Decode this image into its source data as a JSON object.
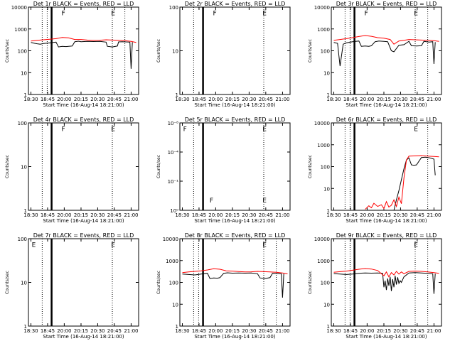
{
  "colors": {
    "events": "#000000",
    "lld": "#ff0000",
    "background": "#ffffff"
  },
  "xtick_labels": [
    "18:30",
    "18:45",
    "20:00",
    "20:15",
    "20:30",
    "20:45",
    "21:00"
  ],
  "chart_data": [
    {
      "type": "line",
      "title": "Det 1r BLACK = Events, RED = LLD",
      "xlabel": "Start Time (16-Aug-14 18:21:00)",
      "ylabel": "Counts/sec",
      "yscale": "log",
      "ylim": [
        1,
        10000
      ],
      "ytick_labels": [
        "10000",
        "1000",
        "100",
        "10",
        "1"
      ],
      "grid": false,
      "annotations": [
        "F",
        "E"
      ],
      "series": [
        {
          "color": "#000000",
          "x": [
            0,
            0.3,
            0.5,
            0.75,
            1,
            1.5,
            2,
            2.2,
            2.5,
            2.8,
            3.0,
            3.3,
            3.5,
            3.8,
            4.0,
            4.5,
            5,
            5.5,
            6.0,
            6.1,
            6.5,
            6.9,
            7.0,
            7.3,
            7.9,
            8.0,
            8.1
          ],
          "y": [
            240,
            220,
            210,
            200,
            215,
            230,
            250,
            150,
            160,
            155,
            160,
            165,
            260,
            275,
            260,
            270,
            265,
            270,
            250,
            160,
            150,
            165,
            255,
            260,
            250,
            15,
            250
          ]
        },
        {
          "color": "#ff0000",
          "x": [
            0,
            0.5,
            1,
            1.5,
            2,
            2.5,
            3,
            3.5,
            4,
            4.5,
            5,
            5.5,
            6,
            6.5,
            7,
            7.5,
            8,
            8.4
          ],
          "y": [
            280,
            300,
            320,
            340,
            360,
            410,
            390,
            330,
            330,
            310,
            300,
            305,
            320,
            310,
            300,
            290,
            270,
            240
          ]
        }
      ],
      "markers": {
        "dotted_x": [
          0.9,
          1.3,
          6.5,
          7.5
        ],
        "solid_x": [
          1.65
        ]
      }
    },
    {
      "type": "line",
      "title": "Det 2r BLACK = Events, RED = LLD",
      "xlabel": "Start Time (16-Aug-14 18:21:00)",
      "ylabel": "Counts/sec",
      "yscale": "log",
      "ylim": [
        1,
        100
      ],
      "ytick_labels": [
        "100",
        "10",
        "1"
      ],
      "grid": false,
      "annotations": [
        "F",
        "E"
      ],
      "series": [],
      "markers": {
        "dotted_x": [
          0.9,
          6.5
        ],
        "solid_x": [
          1.65
        ]
      }
    },
    {
      "type": "line",
      "title": "Det 3r BLACK = Events, RED = LLD",
      "xlabel": "Start Time (16-Aug-14 18:21:00)",
      "ylabel": "Counts/sec",
      "yscale": "log",
      "ylim": [
        1,
        10000
      ],
      "ytick_labels": [
        "10000",
        "1000",
        "100",
        "10",
        "1"
      ],
      "grid": false,
      "annotations": [
        "F",
        "E"
      ],
      "series": [
        {
          "color": "#000000",
          "x": [
            0,
            0.3,
            0.5,
            0.75,
            1,
            1.5,
            2,
            2.2,
            2.5,
            2.8,
            3.0,
            3.3,
            3.6,
            4.0,
            4.3,
            4.6,
            4.8,
            5.2,
            5.6,
            6.0,
            6.2,
            6.6,
            7.0,
            7.2,
            7.6,
            7.9,
            8.0,
            8.1
          ],
          "y": [
            240,
            220,
            20,
            200,
            230,
            260,
            280,
            160,
            165,
            160,
            170,
            260,
            280,
            270,
            260,
            100,
            90,
            180,
            190,
            270,
            170,
            165,
            170,
            270,
            250,
            260,
            25,
            250
          ]
        },
        {
          "color": "#ff0000",
          "x": [
            0,
            0.5,
            1,
            1.5,
            2,
            2.5,
            3,
            3.5,
            4,
            4.5,
            4.8,
            5.2,
            5.6,
            6,
            6.5,
            7,
            7.5,
            8,
            8.4
          ],
          "y": [
            300,
            330,
            360,
            400,
            450,
            500,
            460,
            400,
            380,
            330,
            200,
            280,
            300,
            330,
            320,
            310,
            300,
            290,
            270
          ]
        }
      ],
      "markers": {
        "dotted_x": [
          0.9,
          1.3,
          6.5,
          7.5
        ],
        "solid_x": [
          1.65
        ]
      }
    },
    {
      "type": "line",
      "title": "Det 4r BLACK = Events, RED = LLD",
      "xlabel": "Start Time (16-Aug-14 18:21:00)",
      "ylabel": "Counts/sec",
      "yscale": "log",
      "ylim": [
        1,
        100
      ],
      "ytick_labels": [
        "100",
        "10",
        "1"
      ],
      "grid": false,
      "annotations": [
        "F",
        "E"
      ],
      "series": [],
      "markers": {
        "dotted_x": [
          0.9,
          6.5
        ],
        "solid_x": [
          1.65
        ]
      }
    },
    {
      "type": "line",
      "title": "Det 5r BLACK = Events, RED = LLD",
      "xlabel": "Start Time (16-Aug-14 18:21:00)",
      "ylabel": "Counts/sec",
      "yscale": "log",
      "ylim": [
        1,
        1e-08
      ],
      "ytick_labels": [
        "10⁻⁸",
        "10⁻⁴",
        "10⁻¹",
        "10⁰"
      ],
      "grid": false,
      "annotations": [
        "F",
        "F",
        "E",
        "E"
      ],
      "series": [],
      "markers": {
        "dotted_x": [
          0.9,
          6.5
        ],
        "solid_x": [
          1.65
        ]
      }
    },
    {
      "type": "line",
      "title": "Det 6r BLACK = Events, RED = LLD",
      "xlabel": "Start Time (16-Aug-14 18:21:00)",
      "ylabel": "Counts/sec",
      "yscale": "log",
      "ylim": [
        1,
        10000
      ],
      "ytick_labels": [
        "10000",
        "1000",
        "100",
        "10",
        "1"
      ],
      "grid": false,
      "annotations": [
        "E"
      ],
      "series": [
        {
          "color": "#000000",
          "x": [
            4.8,
            5.0,
            5.2,
            5.4,
            5.6,
            5.8,
            6.0,
            6.2,
            6.4,
            6.6,
            7.0,
            7.3,
            7.5,
            7.7,
            8.0,
            8.1
          ],
          "y": [
            1,
            3,
            8,
            25,
            80,
            200,
            250,
            120,
            115,
            120,
            260,
            270,
            260,
            250,
            220,
            40
          ]
        },
        {
          "color": "#ff0000",
          "x": [
            2.5,
            2.8,
            3.0,
            3.2,
            3.5,
            3.8,
            4.0,
            4.2,
            4.4,
            4.6,
            4.8,
            5.0,
            5.2,
            5.4,
            5.6,
            5.8,
            6.0,
            6.5,
            7.0,
            7.5,
            8.0,
            8.4
          ],
          "y": [
            1.1,
            1.6,
            1.3,
            2.1,
            1.5,
            1.8,
            1.2,
            2.5,
            1.4,
            1.7,
            3,
            1.5,
            4,
            2,
            30,
            200,
            300,
            310,
            320,
            300,
            290,
            280
          ]
        }
      ],
      "markers": {
        "dotted_x": [
          0.9,
          1.3,
          7.5
        ],
        "solid_x": [
          1.65
        ]
      }
    },
    {
      "type": "line",
      "title": "Det 7r BLACK = Events, RED = LLD",
      "xlabel": "Start Time (16-Aug-14 18:21:00)",
      "ylabel": "Counts/sec",
      "yscale": "log",
      "ylim": [
        1,
        100
      ],
      "ytick_labels": [
        "100",
        "10",
        "1"
      ],
      "grid": false,
      "annotations": [
        "E",
        "E"
      ],
      "series": [],
      "markers": {
        "dotted_x": [
          0.9,
          6.5
        ],
        "solid_x": [
          1.65
        ]
      }
    },
    {
      "type": "line",
      "title": "Det 8r BLACK = Events, RED = LLD",
      "xlabel": "Start Time (16-Aug-14 18:21:00)",
      "ylabel": "Counts/sec",
      "yscale": "log",
      "ylim": [
        1,
        10000
      ],
      "ytick_labels": [
        "10000",
        "1000",
        "100",
        "10",
        "1"
      ],
      "grid": false,
      "annotations": [
        "E"
      ],
      "series": [
        {
          "color": "#000000",
          "x": [
            0,
            0.5,
            1,
            1.5,
            2,
            2.2,
            2.5,
            2.8,
            3.0,
            3.3,
            3.6,
            4.0,
            4.5,
            5,
            5.5,
            6.0,
            6.2,
            6.6,
            7.0,
            7.2,
            7.6,
            7.9,
            8.0,
            8.1
          ],
          "y": [
            240,
            230,
            220,
            240,
            260,
            150,
            160,
            155,
            165,
            260,
            275,
            265,
            270,
            265,
            270,
            250,
            160,
            150,
            165,
            260,
            255,
            250,
            20,
            250
          ]
        },
        {
          "color": "#ff0000",
          "x": [
            0,
            0.5,
            1,
            1.5,
            2,
            2.5,
            3,
            3.5,
            4,
            4.5,
            5,
            5.5,
            6,
            6.5,
            7,
            7.5,
            8,
            8.4
          ],
          "y": [
            280,
            300,
            320,
            340,
            370,
            420,
            400,
            340,
            330,
            315,
            300,
            305,
            320,
            310,
            300,
            290,
            270,
            245
          ]
        }
      ],
      "markers": {
        "dotted_x": [
          0.9,
          1.3,
          6.5,
          7.5
        ],
        "solid_x": [
          1.65
        ]
      }
    },
    {
      "type": "line",
      "title": "Det 9r BLACK = Events, RED = LLD",
      "xlabel": "Start Time (16-Aug-14 18:21:00)",
      "ylabel": "Counts/sec",
      "yscale": "log",
      "ylim": [
        1,
        10000
      ],
      "ytick_labels": [
        "10000",
        "1000",
        "100",
        "10",
        "1"
      ],
      "grid": false,
      "annotations": [
        "E"
      ],
      "series": [
        {
          "color": "#000000",
          "x": [
            0,
            0.5,
            1,
            1.5,
            2,
            2.5,
            3,
            3.5,
            3.9,
            4.0,
            4.1,
            4.2,
            4.3,
            4.4,
            4.5,
            4.6,
            4.7,
            4.8,
            4.9,
            5.0,
            5.1,
            5.2,
            5.3,
            5.4,
            5.6,
            6.0,
            6.5,
            7.0,
            7.5,
            7.9,
            8.0,
            8.1
          ],
          "y": [
            250,
            240,
            230,
            240,
            260,
            270,
            265,
            270,
            260,
            60,
            120,
            45,
            150,
            70,
            180,
            40,
            140,
            60,
            200,
            80,
            170,
            90,
            120,
            100,
            180,
            270,
            280,
            270,
            260,
            250,
            30,
            250
          ]
        },
        {
          "color": "#ff0000",
          "x": [
            0,
            0.5,
            1,
            1.5,
            2,
            2.5,
            3,
            3.5,
            4.0,
            4.2,
            4.4,
            4.6,
            4.8,
            5.0,
            5.2,
            5.4,
            5.6,
            6,
            6.5,
            7,
            7.5,
            8,
            8.4
          ],
          "y": [
            290,
            310,
            330,
            360,
            400,
            430,
            410,
            350,
            200,
            300,
            180,
            280,
            220,
            320,
            240,
            300,
            250,
            320,
            330,
            320,
            300,
            280,
            260
          ]
        }
      ],
      "markers": {
        "dotted_x": [
          0.9,
          1.3,
          6.5,
          7.5
        ],
        "solid_x": [
          1.65
        ]
      }
    }
  ]
}
